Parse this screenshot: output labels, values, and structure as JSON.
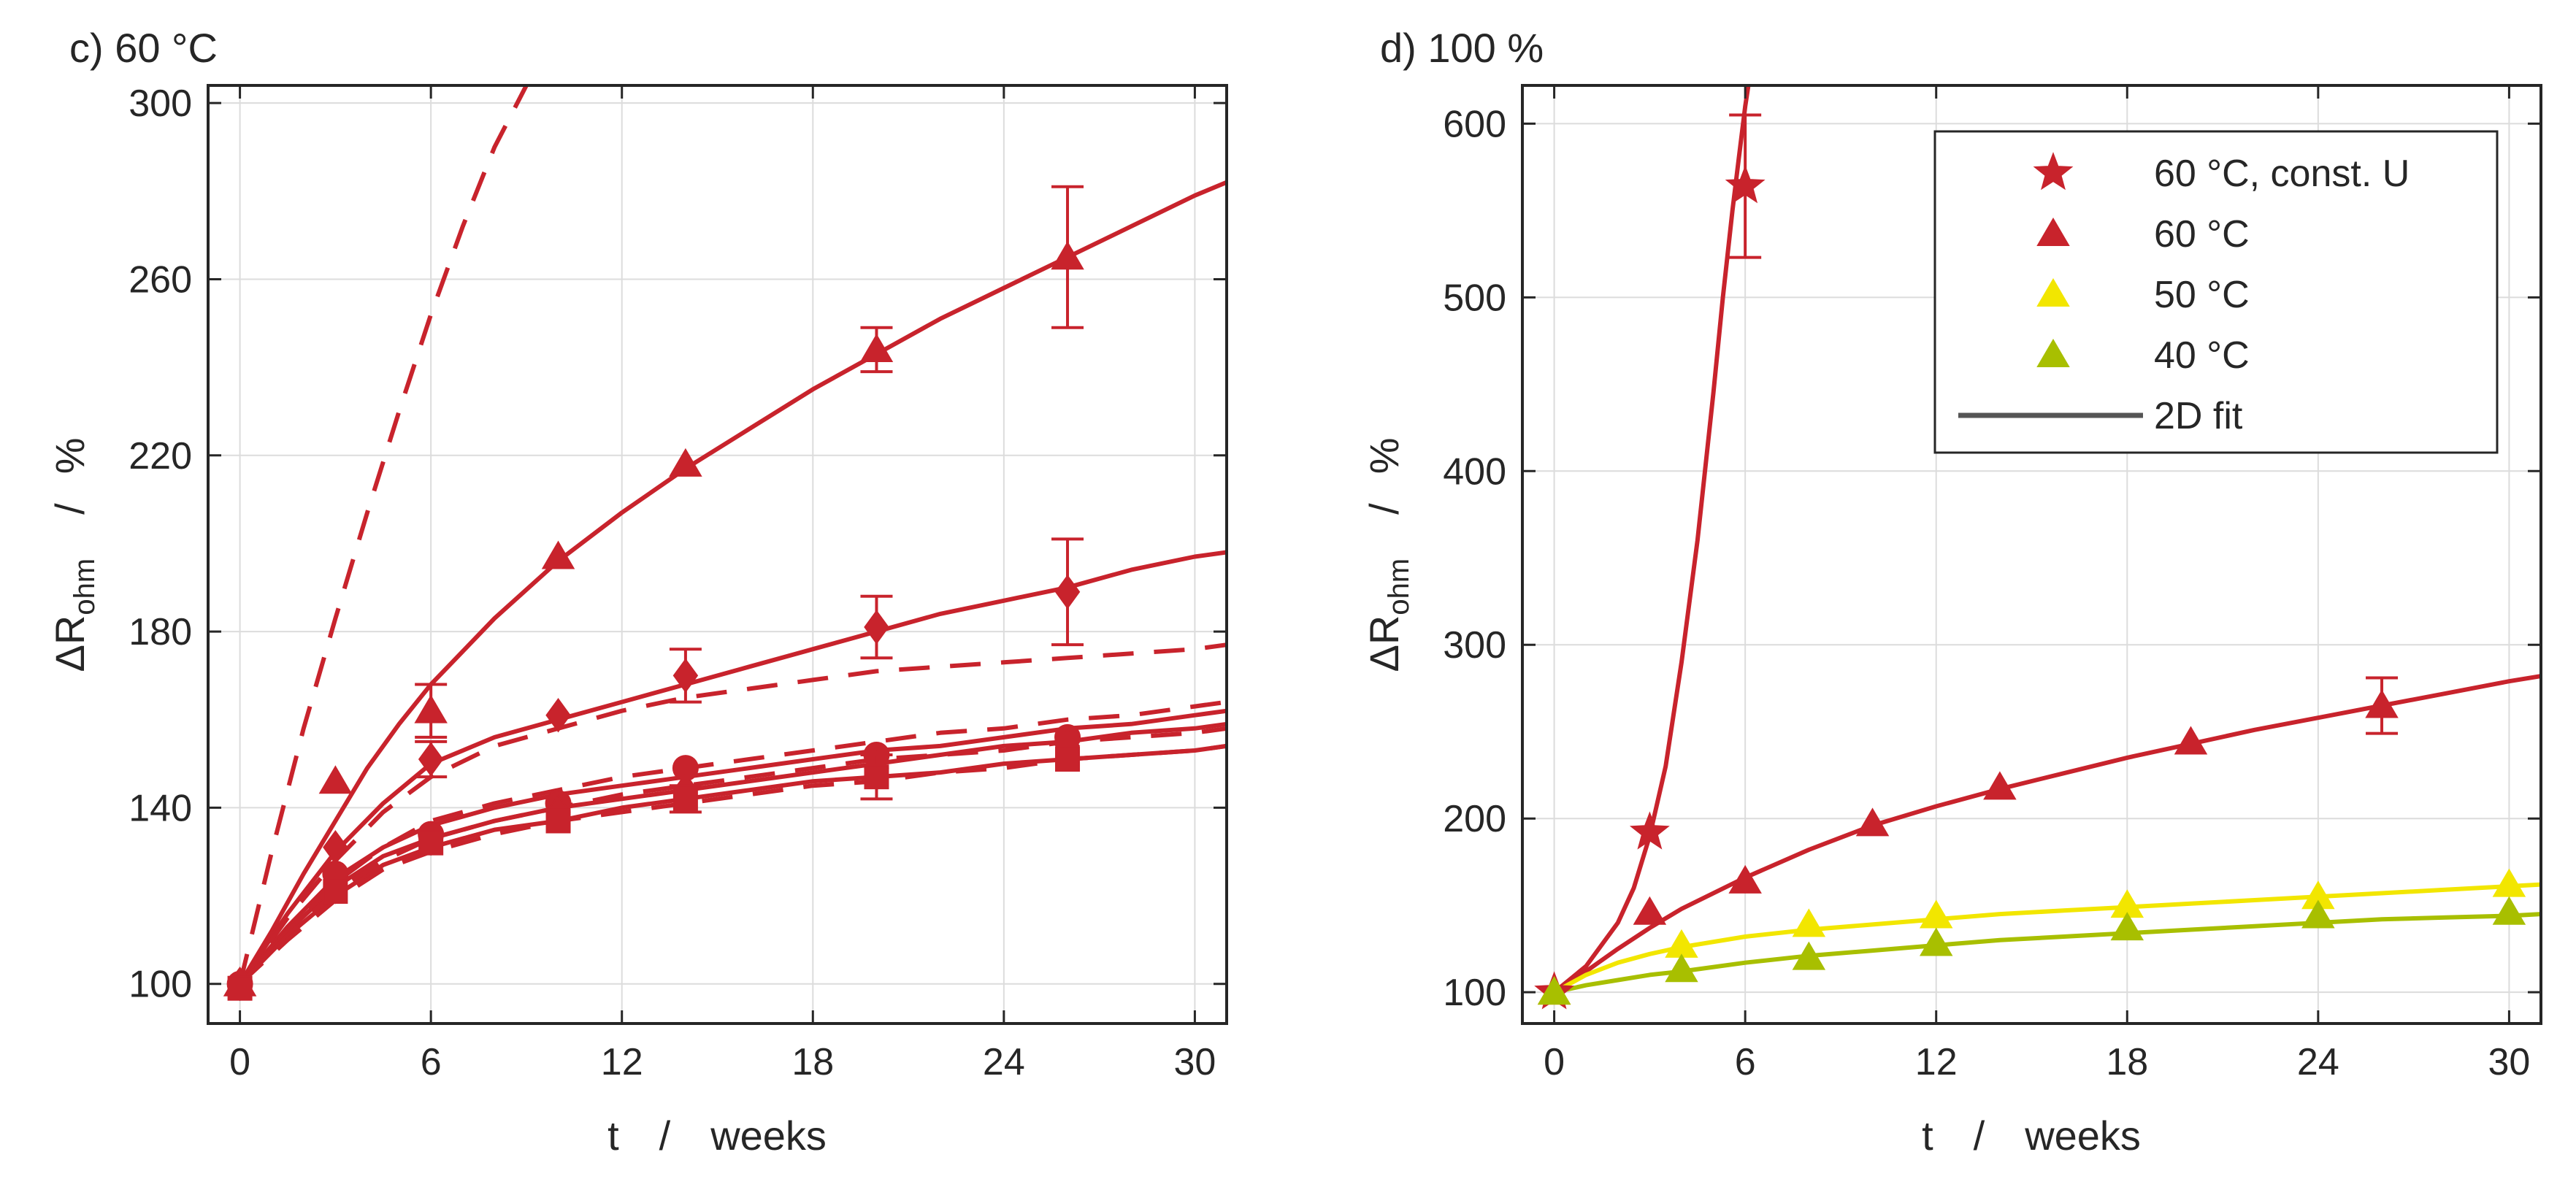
{
  "colors": {
    "red": "#c8232c",
    "yellow": "#f2e600",
    "olive": "#a8bf00",
    "gray": "#555555",
    "grid": "#dcdcdc",
    "axis": "#262626"
  },
  "chart_data": [
    {
      "type": "line",
      "title": "c) 60 °C",
      "xlabel": {
        "var": "t",
        "sep": "/",
        "unit": "weeks"
      },
      "ylabel": {
        "delta": "Δ",
        "var": "R",
        "sub": "ohm",
        "sep": "/",
        "unit": "%"
      },
      "xlim": [
        -1,
        31
      ],
      "ylim": [
        91,
        304
      ],
      "xticks": [
        0,
        6,
        12,
        18,
        24,
        30
      ],
      "xtick_labels": [
        "0",
        "6",
        "12",
        "18",
        "24",
        "30"
      ],
      "yticks": [
        100,
        140,
        180,
        220,
        260,
        300
      ],
      "ytick_labels": [
        "100",
        "140",
        "180",
        "220",
        "260",
        "300"
      ],
      "grid": true,
      "series": [
        {
          "name": "triangle-fit",
          "color": "red",
          "dash": false,
          "x": [
            0,
            1,
            2,
            3,
            4,
            5,
            6,
            8,
            10,
            12,
            14,
            16,
            18,
            20,
            22,
            24,
            26,
            28,
            30,
            31
          ],
          "y": [
            100,
            112,
            125,
            137,
            149,
            159,
            168,
            183,
            196,
            207,
            217,
            226,
            235,
            243,
            251,
            258,
            265,
            272,
            279,
            282
          ]
        },
        {
          "name": "triangle-data",
          "marker": "triangle",
          "color": "red",
          "x": [
            0,
            3,
            6,
            10,
            14,
            20,
            26
          ],
          "y": [
            100,
            146,
            162,
            197,
            218,
            244,
            265
          ],
          "err": [
            0,
            0,
            6,
            0,
            0,
            5,
            16
          ]
        },
        {
          "name": "upper-dashed",
          "color": "red",
          "dash": true,
          "x": [
            0,
            1,
            2,
            3,
            4,
            5,
            6,
            7,
            8,
            9
          ],
          "y": [
            100,
            130,
            158,
            183,
            207,
            230,
            252,
            272,
            290,
            304
          ]
        },
        {
          "name": "diamond-fit",
          "color": "red",
          "dash": false,
          "x": [
            0,
            1.5,
            3,
            4.5,
            6,
            8,
            10,
            12,
            14,
            16,
            18,
            20,
            22,
            24,
            26,
            28,
            30,
            31
          ],
          "y": [
            100,
            116,
            130,
            141,
            150,
            156,
            160,
            164,
            168,
            172,
            176,
            180,
            184,
            187,
            190,
            194,
            197,
            198
          ]
        },
        {
          "name": "diamond-data",
          "marker": "diamond",
          "color": "red",
          "x": [
            0,
            3,
            6,
            10,
            14,
            20,
            26
          ],
          "y": [
            100,
            131,
            151,
            161,
            170,
            181,
            189
          ],
          "err": [
            0,
            0,
            4,
            0,
            6,
            7,
            12
          ]
        },
        {
          "name": "diamond-dashed",
          "color": "red",
          "dash": true,
          "x": [
            0,
            1.5,
            3,
            4.5,
            6,
            8,
            10,
            12,
            14,
            16,
            18,
            20,
            22,
            24,
            26,
            28,
            30,
            31
          ],
          "y": [
            100,
            115,
            128,
            139,
            147,
            154,
            158,
            162,
            165,
            167,
            169,
            171,
            172,
            173,
            174,
            175,
            176,
            177
          ]
        },
        {
          "name": "cluster-fit-1",
          "color": "red",
          "dash": false,
          "x": [
            0,
            1.5,
            3,
            4.5,
            6,
            8,
            10,
            12,
            14,
            16,
            18,
            20,
            22,
            24,
            26,
            28,
            30,
            31
          ],
          "y": [
            100,
            113,
            124,
            131,
            136,
            140,
            143,
            145,
            147,
            149,
            151,
            153,
            154,
            156,
            158,
            159,
            161,
            162
          ]
        },
        {
          "name": "cluster-fit-2",
          "color": "red",
          "dash": false,
          "x": [
            0,
            1.5,
            3,
            4.5,
            6,
            8,
            10,
            12,
            14,
            16,
            18,
            20,
            22,
            24,
            26,
            28,
            30,
            31
          ],
          "y": [
            100,
            112,
            122,
            129,
            133,
            137,
            140,
            142,
            144,
            146,
            148,
            150,
            152,
            154,
            155,
            157,
            158,
            159
          ]
        },
        {
          "name": "cluster-fit-3",
          "color": "red",
          "dash": false,
          "x": [
            0,
            1.5,
            3,
            4.5,
            6,
            8,
            10,
            12,
            14,
            16,
            18,
            20,
            22,
            24,
            26,
            28,
            30,
            31
          ],
          "y": [
            100,
            111,
            120,
            127,
            131,
            135,
            137,
            140,
            142,
            144,
            146,
            147,
            148,
            150,
            151,
            152,
            153,
            154
          ]
        },
        {
          "name": "cluster-dashed-1",
          "color": "red",
          "dash": true,
          "x": [
            0,
            1.5,
            3,
            4.5,
            6,
            8,
            10,
            12,
            14,
            16,
            18,
            20,
            22,
            24,
            26,
            28,
            30,
            31
          ],
          "y": [
            100,
            112,
            123,
            131,
            137,
            141,
            144,
            147,
            149,
            151,
            153,
            155,
            157,
            158,
            160,
            161,
            163,
            164
          ]
        },
        {
          "name": "cluster-dashed-2",
          "color": "red",
          "dash": true,
          "x": [
            0,
            1.5,
            3,
            4.5,
            6,
            8,
            10,
            12,
            14,
            16,
            18,
            20,
            22,
            24,
            26,
            28,
            30,
            31
          ],
          "y": [
            100,
            111,
            121,
            128,
            133,
            137,
            140,
            143,
            145,
            147,
            149,
            151,
            152,
            153,
            155,
            156,
            157,
            158
          ]
        },
        {
          "name": "cluster-dashed-3",
          "color": "red",
          "dash": true,
          "x": [
            0,
            1.5,
            3,
            4.5,
            6,
            8,
            10,
            12,
            14,
            16,
            18,
            20,
            22,
            24,
            26,
            28,
            30,
            31
          ],
          "y": [
            100,
            110,
            119,
            126,
            130,
            134,
            137,
            139,
            141,
            143,
            145,
            146,
            148,
            149,
            151,
            152,
            153,
            154
          ]
        },
        {
          "name": "circle-data",
          "marker": "circle",
          "color": "red",
          "x": [
            0,
            3,
            6,
            10,
            14,
            20,
            26
          ],
          "y": [
            100,
            125,
            134,
            141,
            149,
            152,
            156
          ],
          "err": [
            0,
            0,
            0,
            0,
            0,
            0,
            0
          ]
        },
        {
          "name": "diamond-small-data",
          "marker": "diamond",
          "color": "red",
          "x": [
            3,
            6,
            10,
            14,
            20,
            26
          ],
          "y": [
            122,
            133,
            139,
            144,
            149,
            154
          ],
          "err": [
            0,
            0,
            0,
            0,
            0,
            0
          ]
        },
        {
          "name": "square-data",
          "marker": "square",
          "color": "red",
          "x": [
            0,
            3,
            6,
            10,
            14,
            20,
            26
          ],
          "y": [
            99,
            121,
            132,
            137,
            142,
            147,
            151
          ],
          "err": [
            0,
            0,
            0,
            0,
            3,
            5,
            0
          ]
        }
      ]
    },
    {
      "type": "line",
      "title": "d) 100 %",
      "xlabel": {
        "var": "t",
        "sep": "/",
        "unit": "weeks"
      },
      "ylabel": {
        "delta": "Δ",
        "var": "R",
        "sub": "ohm",
        "sep": "/",
        "unit": "%"
      },
      "xlim": [
        -1,
        31
      ],
      "ylim": [
        82,
        622
      ],
      "xticks": [
        0,
        6,
        12,
        18,
        24,
        30
      ],
      "xtick_labels": [
        "0",
        "6",
        "12",
        "18",
        "24",
        "30"
      ],
      "yticks": [
        100,
        200,
        300,
        400,
        500,
        600
      ],
      "ytick_labels": [
        "100",
        "200",
        "300",
        "400",
        "500",
        "600"
      ],
      "grid": true,
      "legend": {
        "position": "top-right",
        "entries": [
          {
            "label": "60 °C, const. U",
            "marker": "star",
            "color": "red"
          },
          {
            "label": "60 °C",
            "marker": "triangle",
            "color": "red"
          },
          {
            "label": "50 °C",
            "marker": "triangle",
            "color": "yellow"
          },
          {
            "label": "40 °C",
            "marker": "triangle",
            "color": "olive"
          },
          {
            "label": "2D fit",
            "marker": "line",
            "color": "gray"
          }
        ]
      },
      "series": [
        {
          "name": "const-U-fit",
          "color": "red",
          "dash": false,
          "x": [
            0,
            1,
            2,
            2.5,
            3,
            3.5,
            4,
            4.5,
            5,
            5.3,
            5.6,
            5.8,
            6,
            6.1,
            6.2
          ],
          "y": [
            100,
            115,
            140,
            160,
            190,
            230,
            290,
            360,
            445,
            500,
            550,
            580,
            610,
            622,
            630
          ]
        },
        {
          "name": "const-U-data",
          "marker": "star",
          "color": "red",
          "x": [
            0,
            3,
            6
          ],
          "y": [
            100,
            192,
            564
          ],
          "err": [
            0,
            0,
            41
          ]
        },
        {
          "name": "60C-fit",
          "color": "red",
          "dash": false,
          "x": [
            0,
            1,
            2,
            3,
            4,
            6,
            8,
            10,
            12,
            14,
            16,
            18,
            20,
            22,
            24,
            26,
            28,
            30,
            31
          ],
          "y": [
            100,
            112,
            125,
            137,
            148,
            166,
            182,
            196,
            207,
            217,
            226,
            235,
            243,
            251,
            258,
            265,
            272,
            279,
            282
          ]
        },
        {
          "name": "60C-data",
          "marker": "triangle",
          "color": "red",
          "x": [
            0,
            3,
            6,
            10,
            14,
            20,
            26
          ],
          "y": [
            100,
            146,
            164,
            197,
            218,
            244,
            265
          ],
          "err": [
            0,
            0,
            0,
            0,
            0,
            0,
            16
          ]
        },
        {
          "name": "50C-fit",
          "color": "yellow",
          "dash": false,
          "x": [
            0,
            1,
            2,
            3,
            4,
            6,
            8,
            10,
            12,
            14,
            16,
            18,
            20,
            22,
            24,
            26,
            28,
            30,
            31
          ],
          "y": [
            100,
            110,
            117,
            122,
            126,
            132,
            136,
            139,
            142,
            145,
            147,
            149,
            151,
            153,
            155,
            157,
            159,
            161,
            162
          ]
        },
        {
          "name": "50C-data",
          "marker": "triangle",
          "color": "yellow",
          "x": [
            0,
            4,
            8,
            12,
            18,
            24,
            30
          ],
          "y": [
            100,
            127,
            139,
            144,
            150,
            155,
            162
          ],
          "err": [
            0,
            0,
            0,
            0,
            0,
            0,
            0
          ]
        },
        {
          "name": "40C-fit",
          "color": "olive",
          "dash": false,
          "x": [
            0,
            1,
            2,
            3,
            4,
            6,
            8,
            10,
            12,
            14,
            16,
            18,
            20,
            22,
            24,
            26,
            28,
            30,
            31
          ],
          "y": [
            100,
            104,
            107,
            110,
            112,
            117,
            121,
            124,
            127,
            130,
            132,
            134,
            136,
            138,
            140,
            142,
            143,
            144,
            145
          ]
        },
        {
          "name": "40C-data",
          "marker": "triangle",
          "color": "olive",
          "x": [
            0,
            4,
            8,
            12,
            18,
            24,
            30
          ],
          "y": [
            100,
            113,
            120,
            128,
            137,
            144,
            146
          ],
          "err": [
            0,
            0,
            0,
            0,
            0,
            0,
            0
          ]
        }
      ]
    }
  ]
}
